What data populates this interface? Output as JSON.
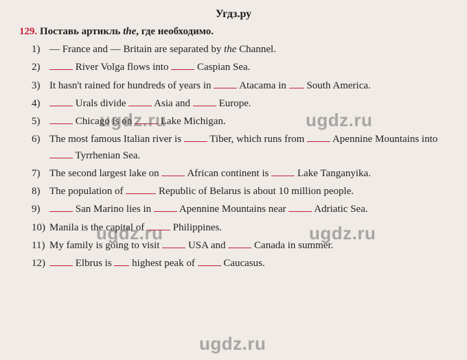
{
  "header": "Угдз.ру",
  "exercise": {
    "number": "129.",
    "instruction_pre": "Поставь артикль ",
    "instruction_word": "the",
    "instruction_post": ", где необходимо."
  },
  "items": [
    {
      "num": "1)",
      "pre": "— France and — Britain are separated by ",
      "the": "the",
      "post": " Channel."
    },
    {
      "num": "2)",
      "text": " River Volga flows into ",
      "text2": " Caspian Sea."
    },
    {
      "num": "3)",
      "text": "It hasn't rained for hundreds of years in ",
      "text2": " Atacama in ",
      "text3": " South America."
    },
    {
      "num": "4)",
      "text": " Urals divide ",
      "text2": " Asia and ",
      "text3": " Europe."
    },
    {
      "num": "5)",
      "text": " Chicago is on ",
      "text2": " Lake Michigan."
    },
    {
      "num": "6)",
      "text": "The most famous Italian river is ",
      "text2": " Tiber, which runs from ",
      "text3": " Apennine Mountains into ",
      "text4": " Tyrrhenian Sea."
    },
    {
      "num": "7)",
      "text": "The second largest lake on ",
      "text2": " African continent is ",
      "text3": " Lake Tanganyika."
    },
    {
      "num": "8)",
      "text": "The population of ",
      "text2": " Republic of Belarus is about 10 million people."
    },
    {
      "num": "9)",
      "text": " San Marino lies in ",
      "text2": " Apennine Mountains near ",
      "text3": " Adriatic Sea."
    },
    {
      "num": "10)",
      "text": "Manila is the capital of ",
      "text2": " Philippines."
    },
    {
      "num": "11)",
      "text": "My family is going to visit ",
      "text2": " USA and ",
      "text3": " Canada in summer."
    },
    {
      "num": "12)",
      "text": " Elbrus is ",
      "text2": " highest peak of ",
      "text3": " Caucasus."
    }
  ],
  "watermark": "ugdz.ru",
  "watermark_footer": "ugdz.ru"
}
